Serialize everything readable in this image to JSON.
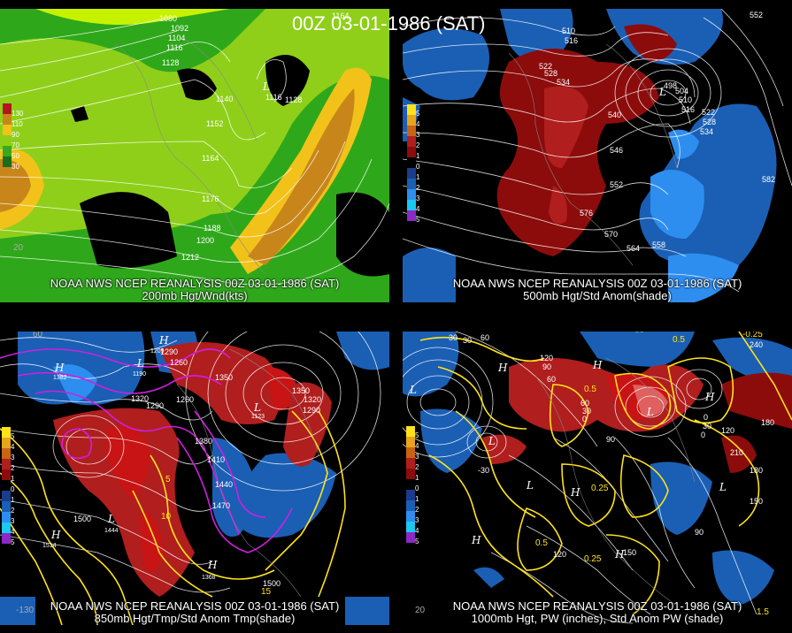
{
  "main_title": "00Z 03-01-1986 (SAT)",
  "panels": [
    {
      "id": "p200",
      "caption_line1": "NOAA NWS NCEP REANALYSIS 00Z 03-01-1986 (SAT)",
      "caption_line2": "200mb Hgt/Wnd(kts)",
      "contour_labels": [
        "1080",
        "1092",
        "1104",
        "1116",
        "1128",
        "1140",
        "1152",
        "1164",
        "1176",
        "1188",
        "1200",
        "1212",
        "1164",
        "1116",
        "1128"
      ],
      "legend_labels": [
        "130",
        "110",
        "90",
        "70",
        "50",
        "30"
      ],
      "lat_labels": [
        "20"
      ],
      "colors": {
        "jet_core": "#c8861a",
        "jet_mid": "#f2c21a",
        "jet_low": "#8fcf1a",
        "jet_edge": "#1a8f1a",
        "bright": "#c6f200"
      }
    },
    {
      "id": "p500",
      "caption_line1": "NOAA NWS NCEP REANALYSIS 00Z 03-01-1986 (SAT)",
      "caption_line2": "500mb Hgt/Std Anom(shade)",
      "contour_labels": [
        "552",
        "510",
        "516",
        "522",
        "528",
        "534",
        "540",
        "546",
        "552",
        "558",
        "564",
        "570",
        "576",
        "582",
        "498",
        "504",
        "510",
        "516",
        "522",
        "528",
        "534"
      ],
      "legend_labels": [
        "5",
        "4",
        "3",
        "2",
        "1",
        "0",
        "1",
        "2",
        "3",
        "4",
        "5"
      ],
      "colors": {
        "warm": "#a00c0c",
        "warm2": "#c81414",
        "cool": "#1a5fb4",
        "cool2": "#2e8ef0"
      }
    },
    {
      "id": "p850",
      "caption_line1": "NOAA NWS NCEP REANALYSIS 00Z 03-01-1986 (SAT)",
      "caption_line2": "850mb Hgt/Tmp/Std Anom Tmp(shade)",
      "contour_labels": [
        "1290",
        "1260",
        "1350",
        "1320",
        "1290",
        "1260",
        "1380",
        "1410",
        "1440",
        "1470",
        "1500",
        "1500",
        "60",
        "1350",
        "1320",
        "1290",
        "1123",
        "1382",
        "1514",
        "1444",
        "1368",
        "1209",
        "1190"
      ],
      "temp_labels": [
        "5",
        "10",
        "15",
        "-5"
      ],
      "lat_labels": [
        "60",
        "20",
        "-130"
      ],
      "legend_labels": [
        "5",
        "4",
        "3",
        "2",
        "1",
        "0",
        "1",
        "2",
        "3",
        "4",
        "5"
      ]
    },
    {
      "id": "p1000",
      "caption_line1": "NOAA NWS NCEP REANALYSIS 00Z 03-01-1986 (SAT)",
      "caption_line2": "1000mb Hgt, PW (inches), Std Anom PW (shade)",
      "contour_labels": [
        "60",
        "30",
        "0",
        "30",
        "60",
        "90",
        "120",
        "150",
        "180",
        "210",
        "240",
        "30",
        "60",
        "0",
        "30",
        "0",
        "90",
        "120",
        "150",
        "180",
        "-30",
        "120",
        "90"
      ],
      "pw_labels": [
        "0.5",
        "-0.25",
        "0.5",
        "0.25",
        "0.5",
        "0.25",
        "1.5"
      ],
      "lat_labels": [
        "20",
        "60"
      ],
      "legend_labels": [
        "5",
        "4",
        "3",
        "2",
        "1",
        "0",
        "1",
        "2",
        "3",
        "4",
        "5"
      ]
    }
  ],
  "legend_colors": [
    "#ffe21a",
    "#e8a41a",
    "#c86414",
    "#b01e1e",
    "#8c0c0c",
    "#000000",
    "#1a3c8c",
    "#1a5fb4",
    "#2e8ef0",
    "#1ac8f0",
    "#8c28c8"
  ],
  "legend200_colors": [
    "#b4141e",
    "#c8861a",
    "#f2c21a",
    "#8fcf1a",
    "#3aa81a",
    "#1a6e1a"
  ]
}
